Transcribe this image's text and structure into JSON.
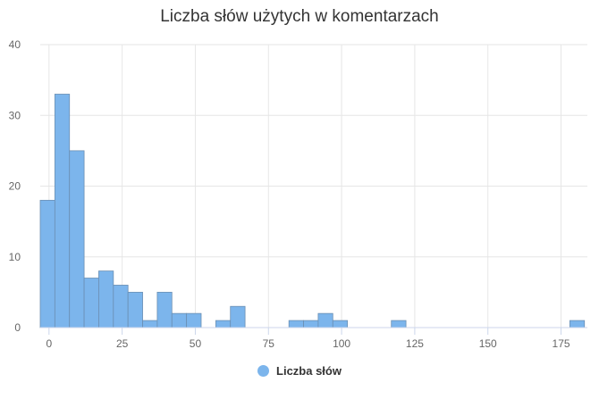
{
  "chart_data": {
    "type": "bar",
    "title": "Liczba słów użytych w komentarzach",
    "xlabel": "",
    "ylabel": "",
    "bin_width": 5,
    "xlim": [
      -3,
      184
    ],
    "ylim": [
      0,
      40
    ],
    "x_ticks": [
      0,
      25,
      50,
      75,
      100,
      125,
      150,
      175
    ],
    "y_ticks": [
      0,
      10,
      20,
      30,
      40
    ],
    "bins": [
      {
        "start": -3,
        "value": 18
      },
      {
        "start": 2,
        "value": 33
      },
      {
        "start": 7,
        "value": 25
      },
      {
        "start": 12,
        "value": 7
      },
      {
        "start": 17,
        "value": 8
      },
      {
        "start": 22,
        "value": 6
      },
      {
        "start": 27,
        "value": 5
      },
      {
        "start": 32,
        "value": 1
      },
      {
        "start": 37,
        "value": 5
      },
      {
        "start": 42,
        "value": 2
      },
      {
        "start": 47,
        "value": 2
      },
      {
        "start": 57,
        "value": 1
      },
      {
        "start": 62,
        "value": 3
      },
      {
        "start": 82,
        "value": 1
      },
      {
        "start": 87,
        "value": 1
      },
      {
        "start": 92,
        "value": 2
      },
      {
        "start": 97,
        "value": 1
      },
      {
        "start": 117,
        "value": 1
      },
      {
        "start": 178,
        "value": 1
      }
    ],
    "series": [
      {
        "name": "Liczba słów",
        "color": "#7cb5ec"
      }
    ],
    "grid": true,
    "legend_position": "bottom-center"
  }
}
